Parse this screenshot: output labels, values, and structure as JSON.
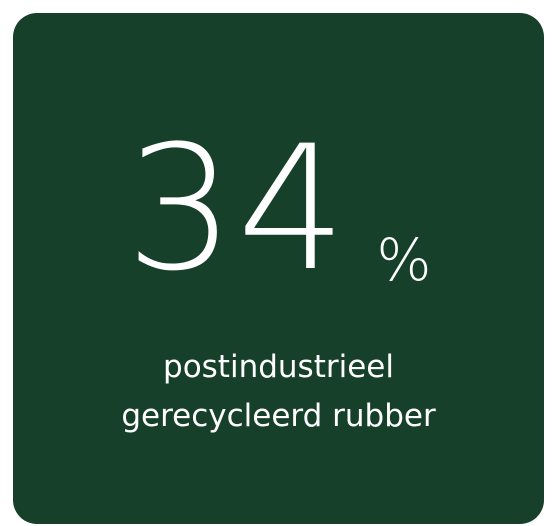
{
  "colors": {
    "card_background": "#17402b",
    "text": "#ffffff",
    "page_background": "#ffffff"
  },
  "stat": {
    "value": "34",
    "unit": "%"
  },
  "caption": {
    "line1": "postindustrieel",
    "line2": "gerecycleerd rubber"
  }
}
